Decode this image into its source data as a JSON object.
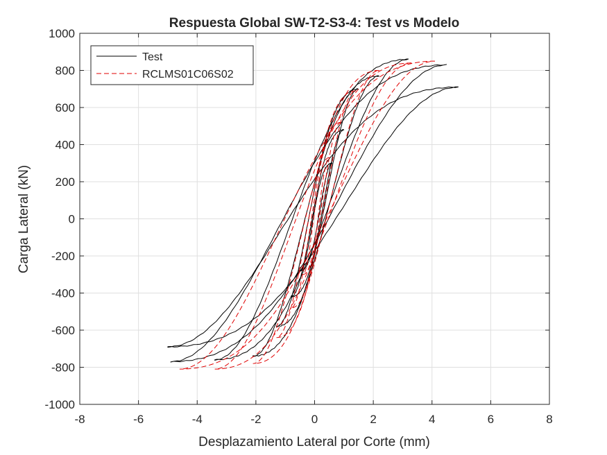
{
  "chart_data": {
    "type": "line",
    "title": "Respuesta Global SW-T2-S3-4: Test vs Modelo",
    "xlabel": "Desplazamiento Lateral por Corte (mm)",
    "ylabel": "Carga Lateral (kN)",
    "xlim": [
      -8,
      8
    ],
    "ylim": [
      -1000,
      1000
    ],
    "xticks": [
      -8,
      -6,
      -4,
      -2,
      0,
      2,
      4,
      6,
      8
    ],
    "yticks": [
      -1000,
      -800,
      -600,
      -400,
      -200,
      0,
      200,
      400,
      600,
      800,
      1000
    ],
    "grid": true,
    "legend_position": "top-left",
    "series": [
      {
        "name": "Test",
        "color": "#000000",
        "style": "solid",
        "cycles": [
          {
            "dpos": 0.6,
            "fpos": 300,
            "dneg": -0.5,
            "fneg": -280
          },
          {
            "dpos": 1.0,
            "fpos": 480,
            "dneg": -0.8,
            "fneg": -420
          },
          {
            "dpos": 1.5,
            "fpos": 700,
            "dneg": -1.3,
            "fneg": -580
          },
          {
            "dpos": 2.2,
            "fpos": 770,
            "dneg": -2.1,
            "fneg": -740
          },
          {
            "dpos": 3.2,
            "fpos": 860,
            "dneg": -3.4,
            "fneg": -760
          },
          {
            "dpos": 4.5,
            "fpos": 830,
            "dneg": -4.9,
            "fneg": -770
          },
          {
            "dpos": 4.9,
            "fpos": 710,
            "dneg": -5.0,
            "fneg": -690
          }
        ]
      },
      {
        "name": "RCLMS01C06S02",
        "color": "#e00000",
        "style": "dashed",
        "cycles": [
          {
            "dpos": 0.5,
            "fpos": 330,
            "dneg": -0.4,
            "fneg": -300
          },
          {
            "dpos": 0.9,
            "fpos": 520,
            "dneg": -0.8,
            "fneg": -480
          },
          {
            "dpos": 1.4,
            "fpos": 690,
            "dneg": -1.3,
            "fneg": -640
          },
          {
            "dpos": 2.2,
            "fpos": 800,
            "dneg": -2.1,
            "fneg": -780
          },
          {
            "dpos": 3.3,
            "fpos": 840,
            "dneg": -3.4,
            "fneg": -810
          },
          {
            "dpos": 4.1,
            "fpos": 850,
            "dneg": -4.6,
            "fneg": -810
          }
        ]
      }
    ]
  }
}
